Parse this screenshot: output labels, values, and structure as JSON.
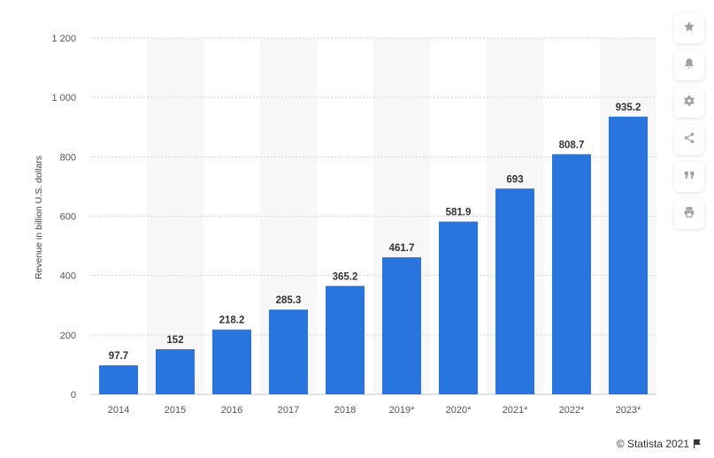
{
  "chart_data": {
    "type": "bar",
    "categories": [
      "2014",
      "2015",
      "2016",
      "2017",
      "2018",
      "2019*",
      "2020*",
      "2021*",
      "2022*",
      "2023*"
    ],
    "values": [
      97.7,
      152,
      218.2,
      285.3,
      365.2,
      461.7,
      581.9,
      693,
      808.7,
      935.2
    ],
    "value_labels": [
      "97.7",
      "152",
      "218.2",
      "285.3",
      "365.2",
      "461.7",
      "581.9",
      "693",
      "808.7",
      "935.2"
    ],
    "ylabel": "Revenue in billion U.S. dollars",
    "ylim": [
      0,
      1200
    ],
    "yticks": [
      0,
      200,
      400,
      600,
      800,
      1000,
      1200
    ],
    "ytick_labels": [
      "0",
      "200",
      "400",
      "600",
      "800",
      "1 000",
      "1 200"
    ],
    "grid": true,
    "bar_color": "#2876dd",
    "alternate_band_color": "#f7f7f7"
  },
  "toolbar": {
    "icons": [
      "star-icon",
      "bell-icon",
      "gear-icon",
      "share-icon",
      "quote-icon",
      "print-icon"
    ]
  },
  "footer": {
    "copyright": "© Statista 2021"
  }
}
